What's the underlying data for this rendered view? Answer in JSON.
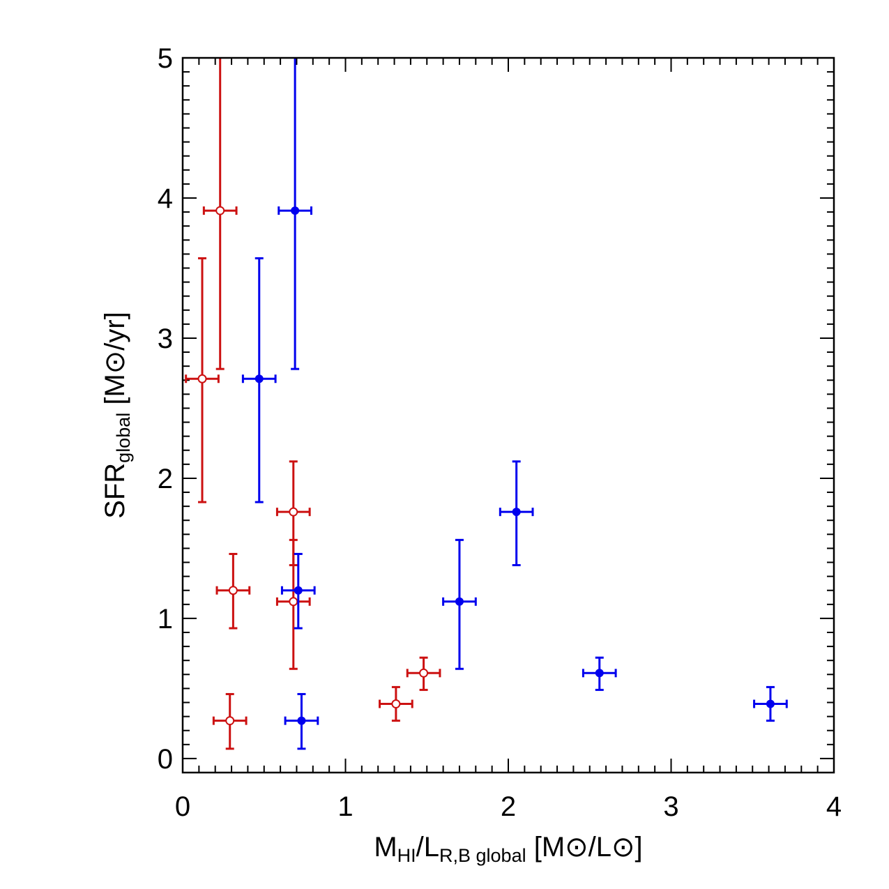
{
  "chart_data": {
    "type": "scatter",
    "xlabel": {
      "parts": [
        "M",
        "HI",
        "/L",
        "R,B global",
        " [M",
        "⊙",
        "/L",
        "⊙",
        "]"
      ]
    },
    "ylabel": {
      "parts": [
        "SFR",
        "global",
        " [M",
        "⊙",
        "/yr]"
      ]
    },
    "xlim": [
      0,
      4
    ],
    "ylim": [
      -0.1,
      5
    ],
    "xticks": [
      0,
      1,
      2,
      3,
      4
    ],
    "xtick_labels": [
      "0",
      "1",
      "2",
      "3",
      "4"
    ],
    "yticks": [
      0,
      1,
      2,
      3,
      4,
      5
    ],
    "ytick_labels": [
      "0",
      "1",
      "2",
      "3",
      "4",
      "5"
    ],
    "grid": false,
    "series": [
      {
        "marker": "open-circle",
        "color": "#cc1111",
        "points": [
          {
            "x": 0.23,
            "y": 3.91,
            "xerr": 0.1,
            "ylo": 2.78,
            "yhi": 5.1
          },
          {
            "x": 0.12,
            "y": 2.71,
            "xerr": 0.1,
            "ylo": 1.83,
            "yhi": 3.57
          },
          {
            "x": 0.68,
            "y": 1.76,
            "xerr": 0.1,
            "ylo": 1.38,
            "yhi": 2.12
          },
          {
            "x": 0.31,
            "y": 1.2,
            "xerr": 0.1,
            "ylo": 0.93,
            "yhi": 1.46
          },
          {
            "x": 0.68,
            "y": 1.12,
            "xerr": 0.1,
            "ylo": 0.64,
            "yhi": 1.56
          },
          {
            "x": 0.29,
            "y": 0.27,
            "xerr": 0.1,
            "ylo": 0.07,
            "yhi": 0.46
          },
          {
            "x": 1.31,
            "y": 0.39,
            "xerr": 0.1,
            "ylo": 0.27,
            "yhi": 0.51
          },
          {
            "x": 1.48,
            "y": 0.61,
            "xerr": 0.1,
            "ylo": 0.49,
            "yhi": 0.72
          }
        ]
      },
      {
        "marker": "filled-circle",
        "color": "#0000ee",
        "points": [
          {
            "x": 0.69,
            "y": 3.91,
            "xerr": 0.1,
            "ylo": 2.78,
            "yhi": 5.1
          },
          {
            "x": 0.47,
            "y": 2.71,
            "xerr": 0.1,
            "ylo": 1.83,
            "yhi": 3.57
          },
          {
            "x": 0.71,
            "y": 1.2,
            "xerr": 0.1,
            "ylo": 0.93,
            "yhi": 1.46
          },
          {
            "x": 0.73,
            "y": 0.27,
            "xerr": 0.1,
            "ylo": 0.07,
            "yhi": 0.46
          },
          {
            "x": 1.7,
            "y": 1.12,
            "xerr": 0.1,
            "ylo": 0.64,
            "yhi": 1.56
          },
          {
            "x": 2.05,
            "y": 1.76,
            "xerr": 0.1,
            "ylo": 1.38,
            "yhi": 2.12
          },
          {
            "x": 2.56,
            "y": 0.61,
            "xerr": 0.1,
            "ylo": 0.49,
            "yhi": 0.72
          },
          {
            "x": 3.61,
            "y": 0.39,
            "xerr": 0.1,
            "ylo": 0.27,
            "yhi": 0.51
          }
        ]
      }
    ]
  }
}
